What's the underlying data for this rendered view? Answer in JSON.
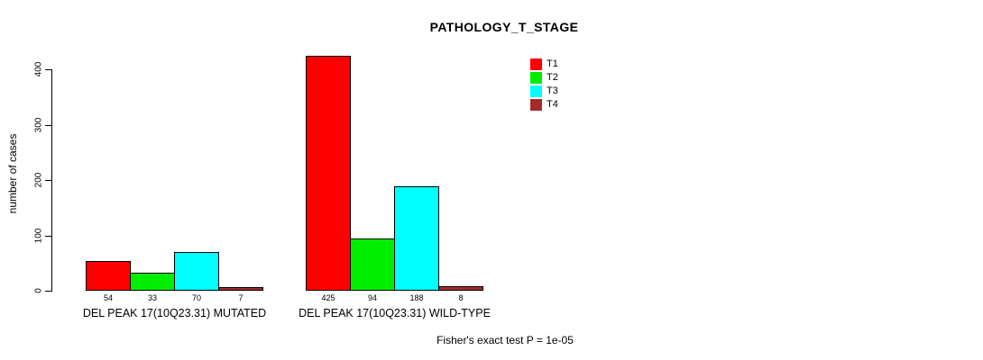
{
  "title": "PATHOLOGY_T_STAGE",
  "ylabel": "number of cases",
  "footer": "Fisher's exact test P = 1e-05",
  "chart_data": {
    "type": "bar",
    "title": "PATHOLOGY_T_STAGE",
    "xlabel": "",
    "ylabel": "number of cases",
    "ylim": [
      0,
      400
    ],
    "y_ticks": [
      0,
      100,
      200,
      300,
      400
    ],
    "grid": false,
    "legend_position": "top-right",
    "series_labels": [
      "T1",
      "T2",
      "T3",
      "T4"
    ],
    "series_colors": [
      "#FF0000",
      "#00EE00",
      "#00FFFF",
      "#A52A2A"
    ],
    "groups": [
      {
        "label": "DEL PEAK 17(10Q23.31) MUTATED",
        "values": [
          54,
          33,
          70,
          7
        ]
      },
      {
        "label": "DEL PEAK 17(10Q23.31) WILD-TYPE",
        "values": [
          425,
          94,
          188,
          8
        ]
      }
    ],
    "bar_value_labels_shown": true,
    "annotation": "Fisher's exact test P = 1e-05"
  }
}
